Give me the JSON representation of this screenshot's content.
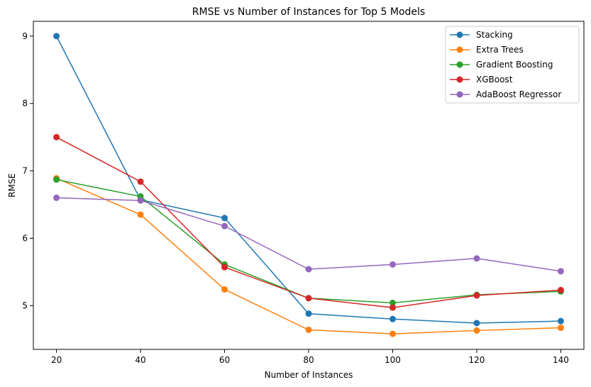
{
  "chart_data": {
    "type": "line",
    "title": "RMSE vs Number of Instances for Top 5 Models",
    "xlabel": "Number of Instances",
    "ylabel": "RMSE",
    "x": [
      20,
      40,
      60,
      80,
      100,
      120,
      140
    ],
    "xticks": [
      20,
      40,
      60,
      80,
      100,
      120,
      140
    ],
    "yticks": [
      5,
      6,
      7,
      8,
      9
    ],
    "xlim": [
      14.5,
      145.5
    ],
    "ylim": [
      4.35,
      9.22
    ],
    "grid": false,
    "legend_position": "top-right",
    "series": [
      {
        "name": "Stacking",
        "color": "#1f77b4",
        "values": [
          9.0,
          6.57,
          6.3,
          4.88,
          4.8,
          4.74,
          4.77
        ]
      },
      {
        "name": "Extra Trees",
        "color": "#ff7f0e",
        "values": [
          6.89,
          6.35,
          5.24,
          4.64,
          4.58,
          4.63,
          4.67
        ]
      },
      {
        "name": "Gradient Boosting",
        "color": "#2ca02c",
        "values": [
          6.87,
          6.62,
          5.61,
          5.11,
          5.04,
          5.16,
          5.21
        ]
      },
      {
        "name": "XGBoost",
        "color": "#d62728",
        "values": [
          7.5,
          6.84,
          5.57,
          5.11,
          4.97,
          5.15,
          5.23
        ]
      },
      {
        "name": "AdaBoost Regressor",
        "color": "#9467bd",
        "values": [
          6.6,
          6.56,
          6.18,
          5.54,
          5.61,
          5.7,
          5.51
        ]
      }
    ]
  }
}
